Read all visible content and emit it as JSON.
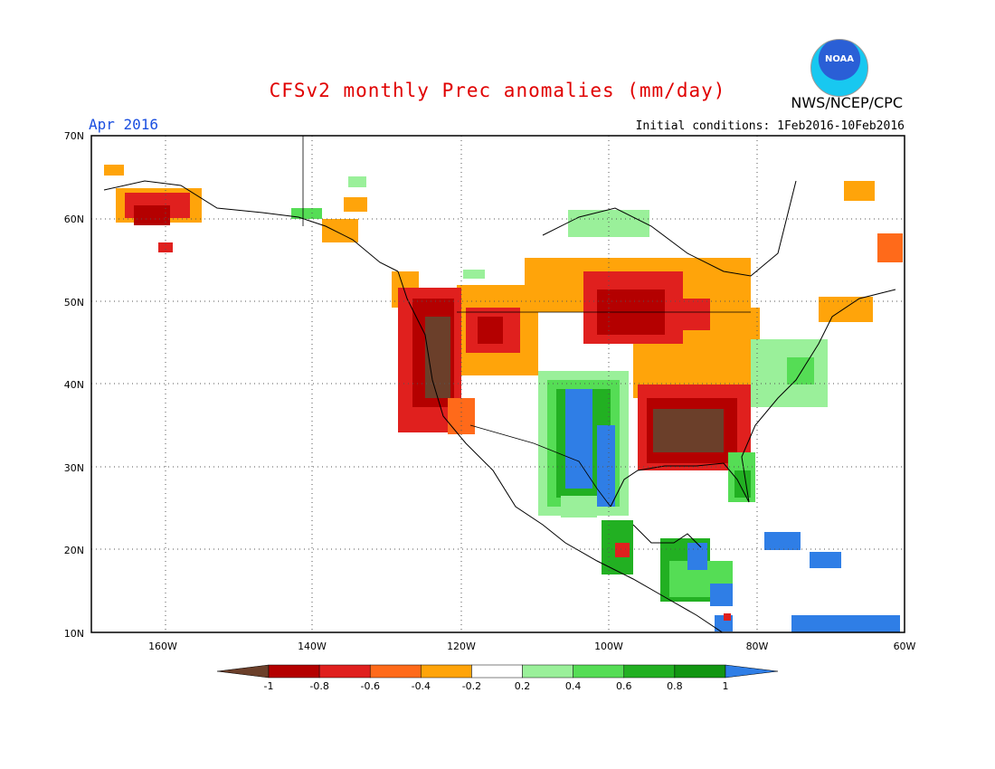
{
  "header": {
    "title": "CFSv2 monthly Prec anomalies (mm/day)",
    "agency": "NWS/NCEP/CPC",
    "logo_text": "NOAA",
    "month": "Apr 2016",
    "initial_conditions": "Initial conditions: 1Feb2016-10Feb2016"
  },
  "axes": {
    "lat_labels": [
      "70N",
      "60N",
      "50N",
      "40N",
      "30N",
      "20N",
      "10N"
    ],
    "lon_labels": [
      "160W",
      "140W",
      "120W",
      "100W",
      "80W",
      "60W"
    ]
  },
  "colorbar": {
    "labels": [
      "-1",
      "-0.8",
      "-0.6",
      "-0.4",
      "-0.2",
      "0.2",
      "0.4",
      "0.6",
      "0.8",
      "1"
    ],
    "colors": [
      "#6b3f2a",
      "#b40000",
      "#e0201e",
      "#ff6a1a",
      "#ffa40a",
      "#ffffff",
      "#9af09a",
      "#55dd55",
      "#22b022",
      "#129612",
      "#2f7ee6"
    ]
  },
  "anomaly_regions": [
    {
      "name": "pacific-northwest-california",
      "value": -1.0
    },
    {
      "name": "northern-rockies",
      "value": -0.6
    },
    {
      "name": "upper-midwest",
      "value": -0.6
    },
    {
      "name": "lower-mississippi-tennessee",
      "value": -1.0
    },
    {
      "name": "southern-plains-texas",
      "value": 0.6
    },
    {
      "name": "mexico-west",
      "value": 0.8
    },
    {
      "name": "central-america",
      "value": 0.8
    },
    {
      "name": "caribbean",
      "value": 1.0
    },
    {
      "name": "florida",
      "value": 0.6
    },
    {
      "name": "northeast",
      "value": 0.4
    },
    {
      "name": "hudson-bay",
      "value": 0.2
    },
    {
      "name": "alaska-southwest",
      "value": -0.6
    }
  ]
}
